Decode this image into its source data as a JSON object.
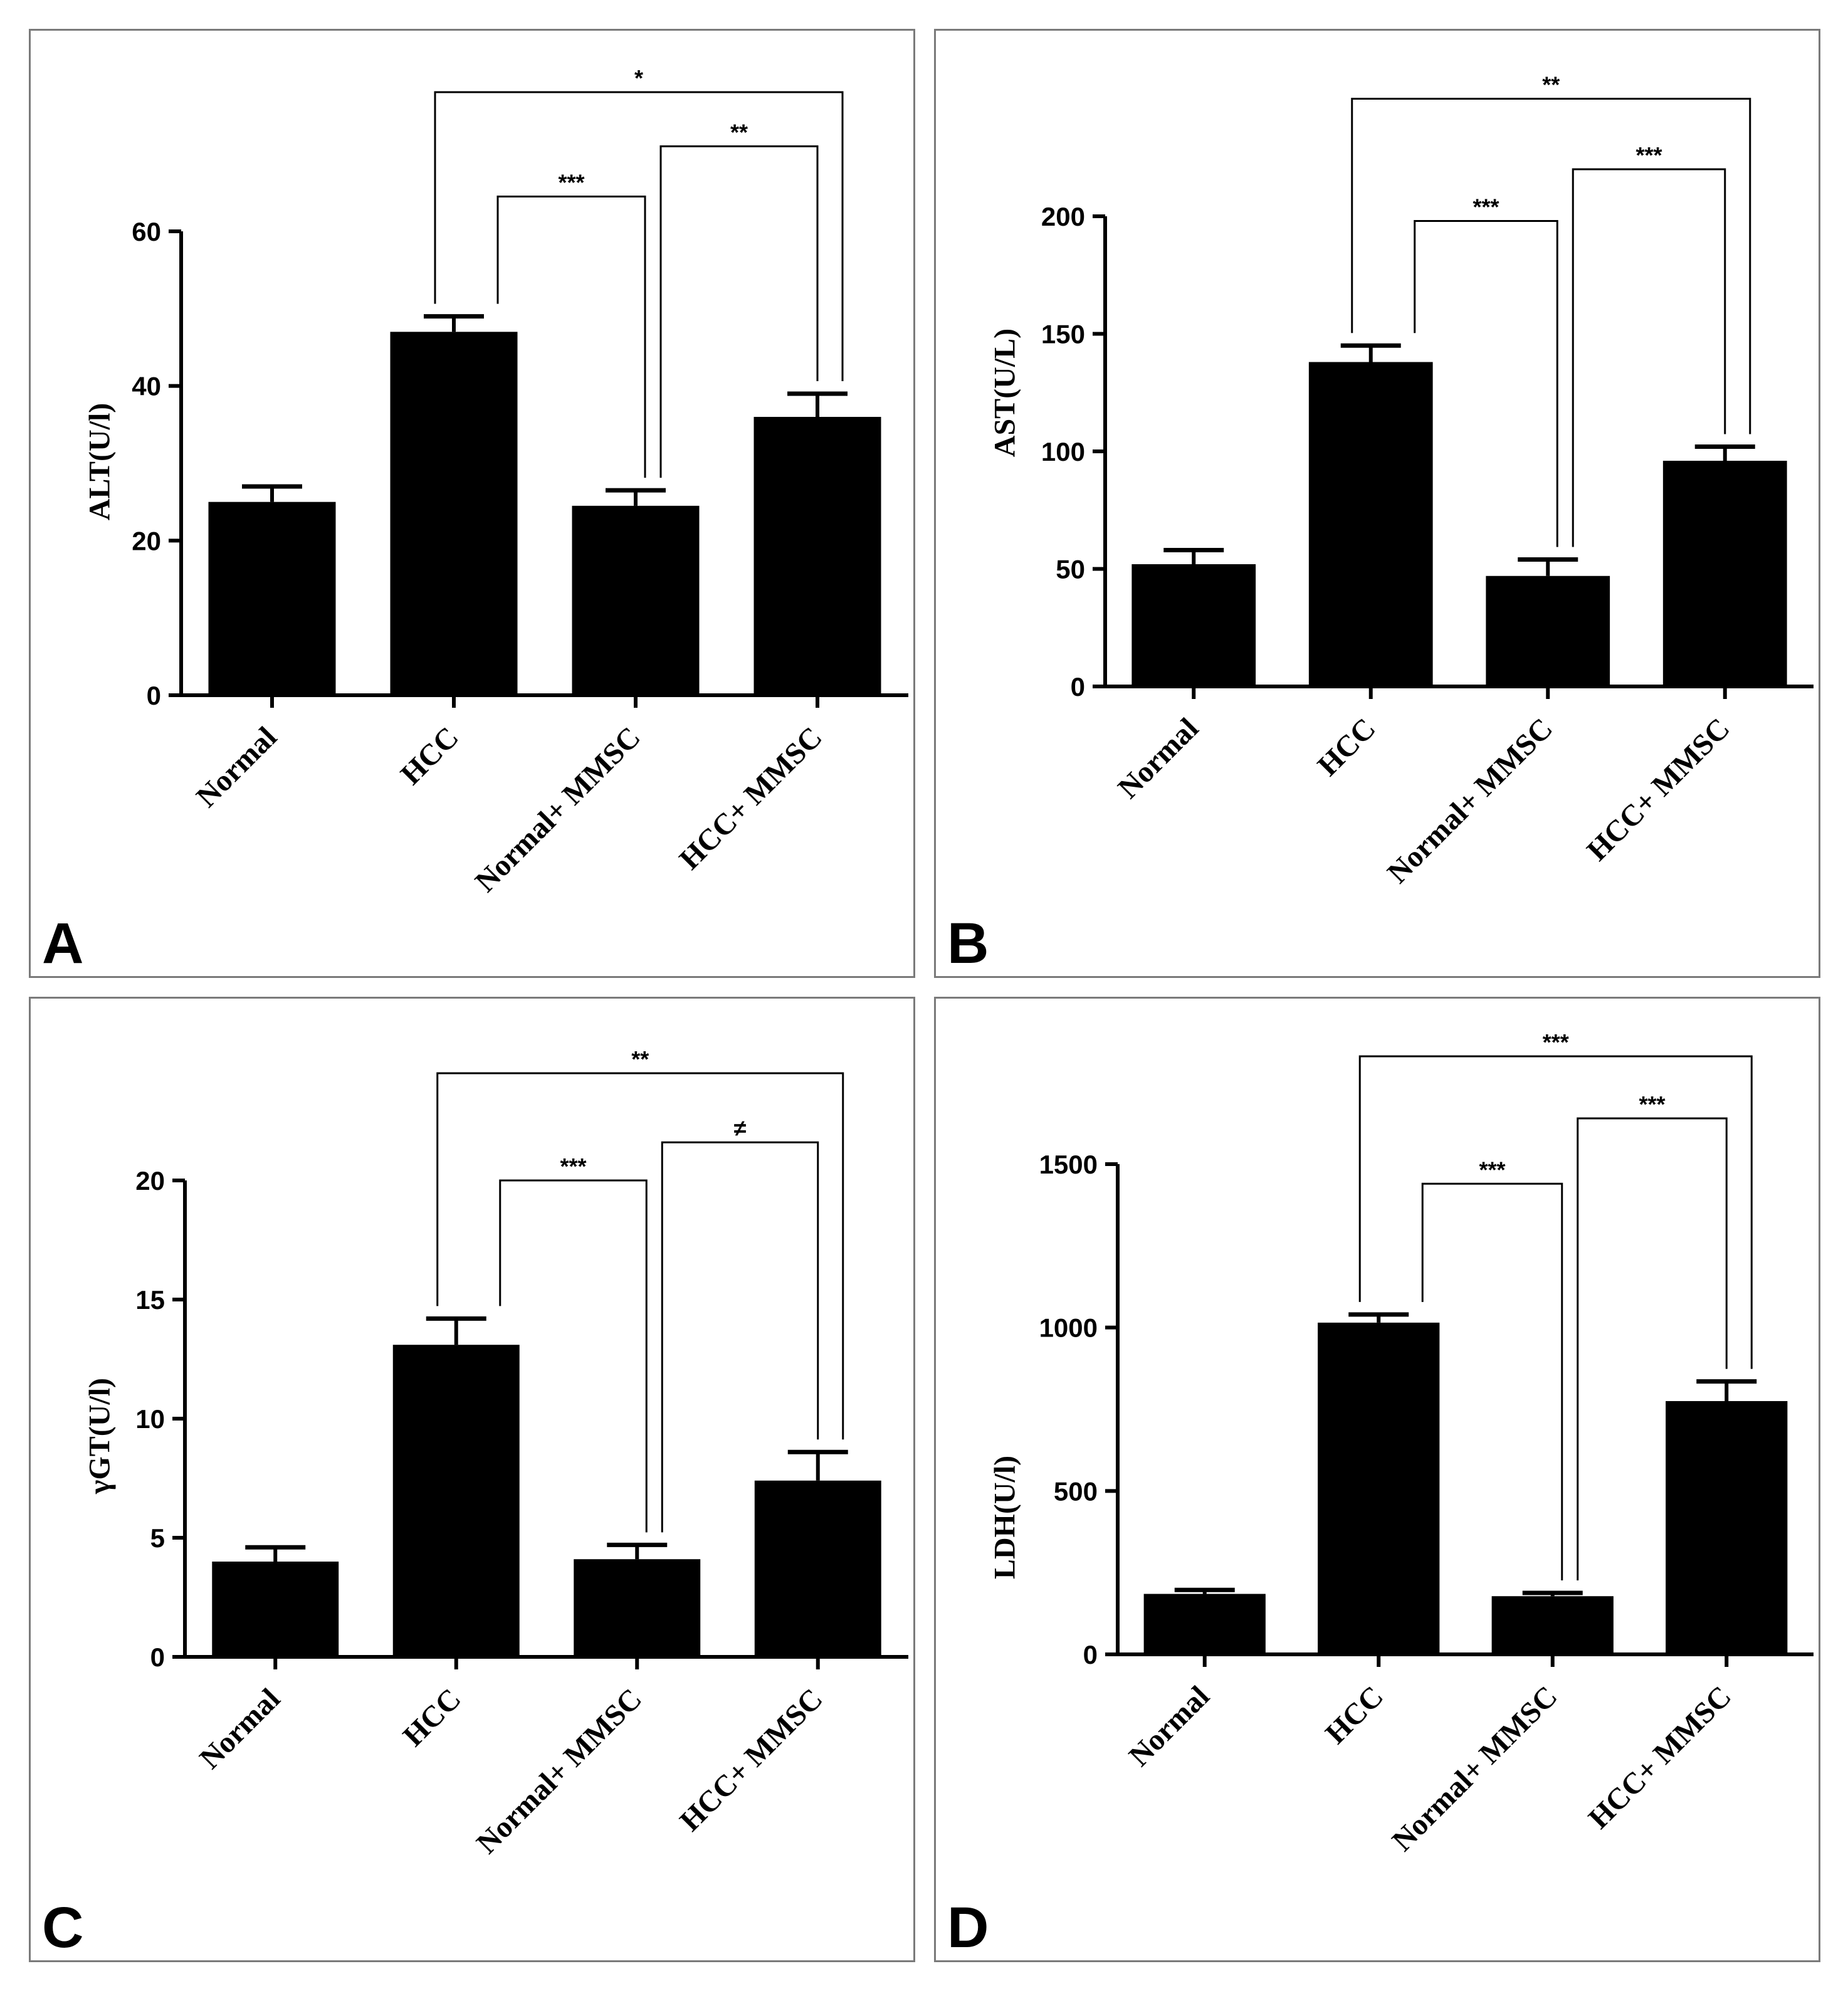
{
  "chart_data": [
    {
      "panel": "A",
      "type": "bar",
      "ylabel": "ALT(U/l)",
      "categories": [
        "Normal",
        "HCC",
        "Normal+ MMSC",
        "HCC+ MMSC"
      ],
      "values": [
        25,
        47,
        24.5,
        36
      ],
      "errors": [
        2,
        2,
        2,
        3
      ],
      "ylim": [
        0,
        60
      ],
      "yticks": [
        0,
        20,
        40,
        60
      ],
      "significance": [
        {
          "from": 1,
          "to": 2,
          "label": "***",
          "y": 64.5
        },
        {
          "from": 2,
          "to": 3,
          "label": "**",
          "y": 71
        },
        {
          "from": 1,
          "to": 3,
          "label": "*",
          "y": 78
        }
      ]
    },
    {
      "panel": "B",
      "type": "bar",
      "ylabel": "AST(U/L)",
      "categories": [
        "Normal",
        "HCC",
        "Normal+ MMSC",
        "HCC+ MMSC"
      ],
      "values": [
        52,
        138,
        47,
        96
      ],
      "errors": [
        6,
        7,
        7,
        6
      ],
      "ylim": [
        0,
        200
      ],
      "yticks": [
        0,
        50,
        100,
        150,
        200
      ],
      "significance": [
        {
          "from": 1,
          "to": 2,
          "label": "***",
          "y": 198
        },
        {
          "from": 2,
          "to": 3,
          "label": "***",
          "y": 220
        },
        {
          "from": 1,
          "to": 3,
          "label": "**",
          "y": 250
        }
      ]
    },
    {
      "panel": "C",
      "type": "bar",
      "ylabel": "γGT(U/l)",
      "categories": [
        "Normal",
        "HCC",
        "Normal+ MMSC",
        "HCC+ MMSC"
      ],
      "values": [
        4,
        13.1,
        4.1,
        7.4
      ],
      "errors": [
        0.6,
        1.1,
        0.6,
        1.2
      ],
      "ylim": [
        0,
        20
      ],
      "yticks": [
        0,
        5,
        10,
        15,
        20
      ],
      "significance": [
        {
          "from": 1,
          "to": 2,
          "label": "***",
          "y": 20
        },
        {
          "from": 2,
          "to": 3,
          "label": "≠",
          "y": 21.6
        },
        {
          "from": 1,
          "to": 3,
          "label": "**",
          "y": 24.5
        }
      ]
    },
    {
      "panel": "D",
      "type": "bar",
      "ylabel": "LDH(U/l)",
      "categories": [
        "Normal",
        "HCC",
        "Normal+ MMSC",
        "HCC+ MMSC"
      ],
      "values": [
        185,
        1015,
        178,
        775
      ],
      "errors": [
        12,
        25,
        10,
        60
      ],
      "ylim": [
        0,
        1500
      ],
      "yticks": [
        0,
        500,
        1000,
        1500
      ],
      "significance": [
        {
          "from": 1,
          "to": 2,
          "label": "***",
          "y": 1440
        },
        {
          "from": 2,
          "to": 3,
          "label": "***",
          "y": 1640
        },
        {
          "from": 1,
          "to": 3,
          "label": "***",
          "y": 1830
        }
      ]
    }
  ]
}
